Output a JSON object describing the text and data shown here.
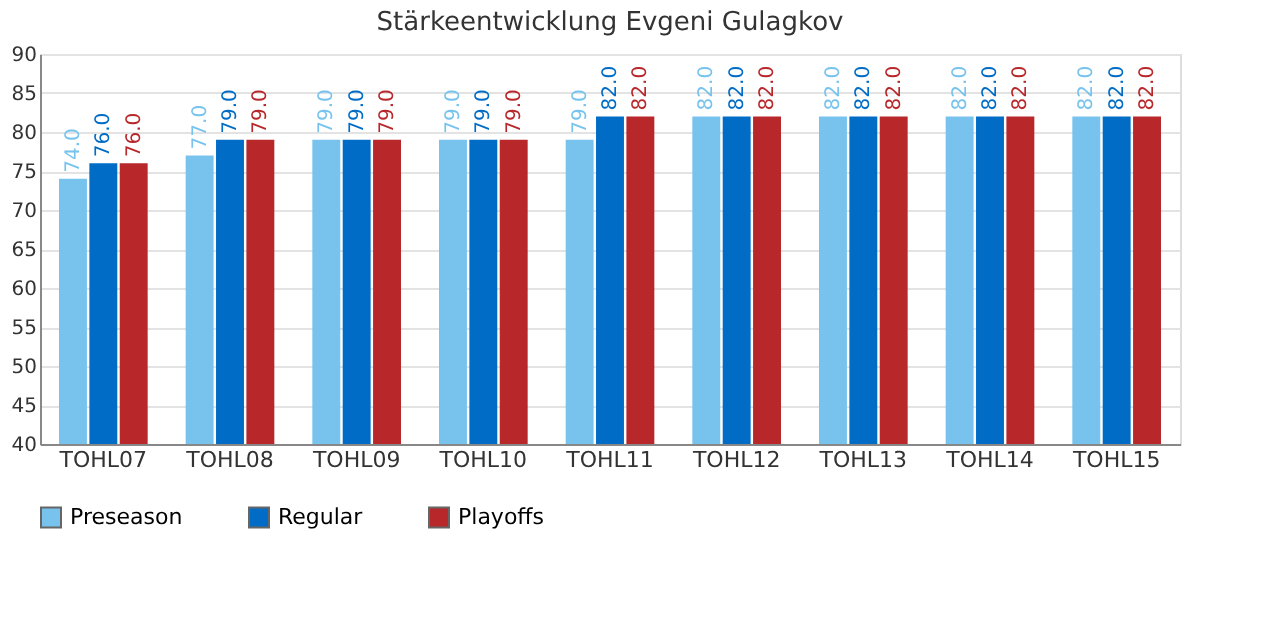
{
  "chart_data": {
    "type": "bar",
    "title": "Stärkeentwicklung Evgeni Gulagkov",
    "categories": [
      "TOHL07",
      "TOHL08",
      "TOHL09",
      "TOHL10",
      "TOHL11",
      "TOHL12",
      "TOHL13",
      "TOHL14",
      "TOHL15"
    ],
    "series": [
      {
        "name": "Preseason",
        "color": "#77c3ee",
        "values": [
          74,
          77,
          79,
          79,
          79,
          82,
          82,
          82,
          82
        ],
        "value_labels": [
          "74.0",
          "77.0",
          "79.0",
          "79.0",
          "79.0",
          "82.0",
          "82.0",
          "82.0",
          "82.0"
        ]
      },
      {
        "name": "Regular",
        "color": "#006cc6",
        "values": [
          76,
          79,
          79,
          79,
          82,
          82,
          82,
          82,
          82
        ],
        "value_labels": [
          "76.0",
          "79.0",
          "79.0",
          "79.0",
          "82.0",
          "82.0",
          "82.0",
          "82.0",
          "82.0"
        ]
      },
      {
        "name": "Playoffs",
        "color": "#b8272a",
        "values": [
          76,
          79,
          79,
          79,
          82,
          82,
          82,
          82,
          82
        ],
        "value_labels": [
          "76.0",
          "79.0",
          "79.0",
          "79.0",
          "82.0",
          "82.0",
          "82.0",
          "82.0",
          "82.0"
        ]
      }
    ],
    "ylim": [
      40,
      90
    ],
    "yticks": [
      40,
      45,
      50,
      55,
      60,
      65,
      70,
      75,
      80,
      85,
      90
    ],
    "grid": "y",
    "legend": "bottom"
  }
}
